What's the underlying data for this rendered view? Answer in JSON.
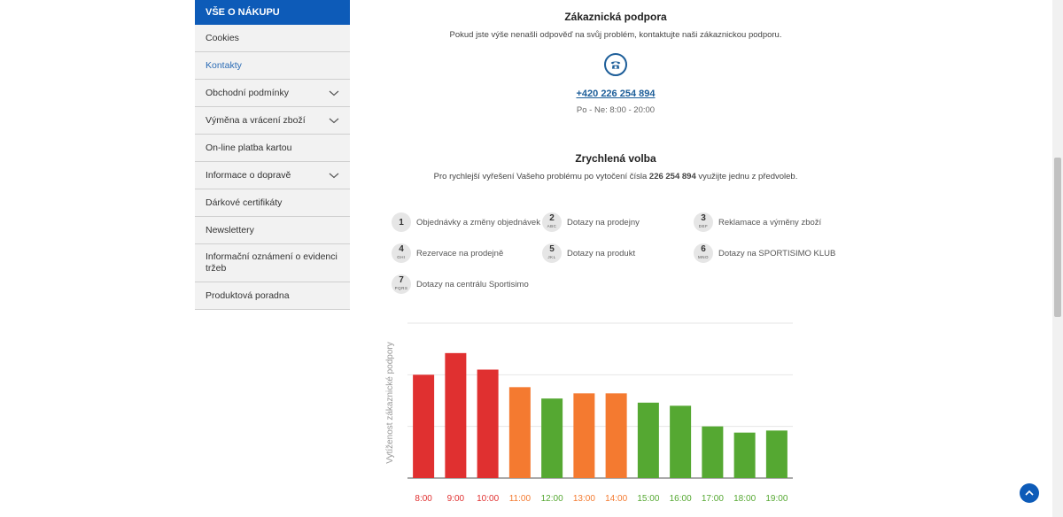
{
  "sidebar": {
    "header": "VŠE O NÁKUPU",
    "items": [
      {
        "label": "Cookies",
        "expandable": false
      },
      {
        "label": "Kontakty",
        "expandable": false,
        "active": true
      },
      {
        "label": "Obchodní podmínky",
        "expandable": true
      },
      {
        "label": "Výměna a vrácení zboží",
        "expandable": true
      },
      {
        "label": "On-line platba kartou",
        "expandable": false
      },
      {
        "label": "Informace o dopravě",
        "expandable": true
      },
      {
        "label": "Dárkové certifikáty",
        "expandable": false
      },
      {
        "label": "Newslettery",
        "expandable": false
      },
      {
        "label": "Informační oznámení o evidenci tržeb",
        "expandable": false,
        "tall": true
      },
      {
        "label": "Produktová poradna",
        "expandable": false
      }
    ]
  },
  "support": {
    "title": "Zákaznická podpora",
    "text": "Pokud jste výše nenašli odpověď na svůj problém, kontaktujte naši zákaznickou podporu.",
    "phone": "+420 226 254 894",
    "hours": "Po - Ne: 8:00 - 20:00"
  },
  "quick": {
    "title": "Zrychlená volba",
    "text_before": "Pro rychlejší vyřešení Vašeho problému po vytočení čísla ",
    "number": "226 254 894",
    "text_after": " využijte jednu z předvoleb.",
    "options": [
      {
        "key": "1",
        "letters": "",
        "label": "Objednávky a změny objednávek"
      },
      {
        "key": "2",
        "letters": "ABC",
        "label": "Dotazy na prodejny"
      },
      {
        "key": "3",
        "letters": "DEF",
        "label": "Reklamace a výměny zboží"
      },
      {
        "key": "4",
        "letters": "GHI",
        "label": "Rezervace na prodejně"
      },
      {
        "key": "5",
        "letters": "JKL",
        "label": "Dotazy na produkt"
      },
      {
        "key": "6",
        "letters": "MNO",
        "label": "Dotazy na SPORTISIMO KLUB"
      },
      {
        "key": "7",
        "letters": "PQRS",
        "label": "Dotazy na centrálu Sportisimo"
      }
    ]
  },
  "chart_data": {
    "type": "bar",
    "ylabel": "Vytíženost zákaznické podpory",
    "categories": [
      "8:00",
      "9:00",
      "10:00",
      "11:00",
      "12:00",
      "13:00",
      "14:00",
      "15:00",
      "16:00",
      "17:00",
      "18:00",
      "19:00"
    ],
    "values": [
      100,
      121,
      105,
      88,
      77,
      82,
      82,
      73,
      70,
      50,
      44,
      46
    ],
    "ylim": [
      0,
      150
    ],
    "colors": [
      "#e03030",
      "#e03030",
      "#e03030",
      "#f47a30",
      "#55a832",
      "#f47a30",
      "#f47a30",
      "#55a832",
      "#55a832",
      "#55a832",
      "#55a832",
      "#55a832"
    ],
    "grid": true
  }
}
